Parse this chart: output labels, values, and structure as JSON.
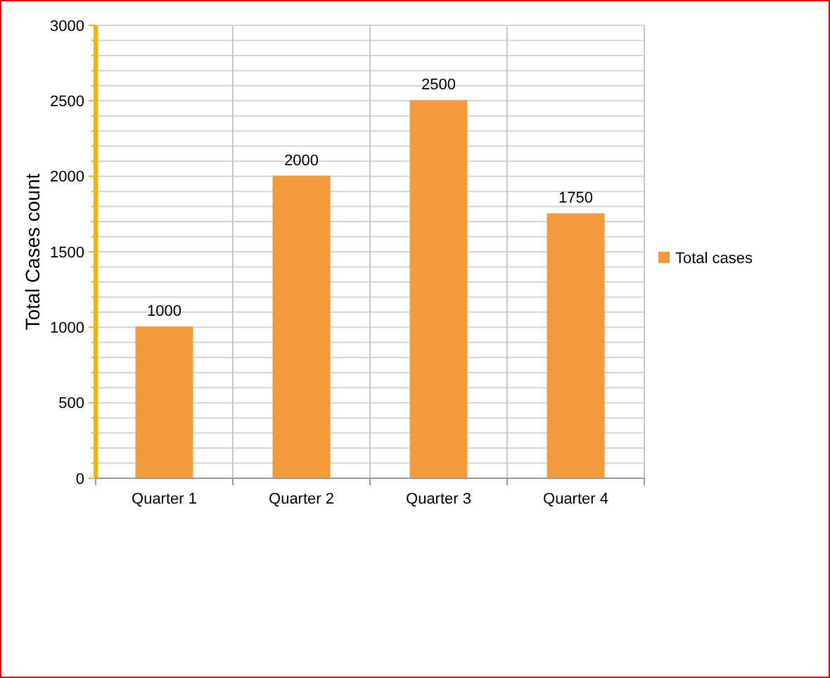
{
  "chart_data": {
    "type": "bar",
    "ylabel": "Total Cases count",
    "categories": [
      "Quarter 1",
      "Quarter 2",
      "Quarter 3",
      "Quarter 4"
    ],
    "series": [
      {
        "name": "Total cases",
        "color": "#f39a3c",
        "values": [
          1000,
          2000,
          2500,
          1750
        ]
      }
    ],
    "ylim": [
      0,
      3000
    ],
    "yticks": [
      0,
      {
        "value": 100,
        "label": null
      },
      {
        "value": 200,
        "label": null
      },
      {
        "value": 300,
        "label": null
      },
      {
        "value": 400,
        "label": null
      },
      500,
      {
        "value": 600,
        "label": null
      },
      {
        "value": 700,
        "label": null
      },
      {
        "value": 800,
        "label": null
      },
      {
        "value": 900,
        "label": null
      },
      1000,
      {
        "value": 1100,
        "label": null
      },
      {
        "value": 1200,
        "label": null
      },
      {
        "value": 1300,
        "label": null
      },
      {
        "value": 1400,
        "label": null
      },
      1500,
      {
        "value": 1600,
        "label": null
      },
      {
        "value": 1700,
        "label": null
      },
      {
        "value": 1800,
        "label": null
      },
      {
        "value": 1900,
        "label": null
      },
      2000,
      {
        "value": 2100,
        "label": null
      },
      {
        "value": 2200,
        "label": null
      },
      {
        "value": 2300,
        "label": null
      },
      {
        "value": 2400,
        "label": null
      },
      2500,
      {
        "value": 2600,
        "label": null
      },
      {
        "value": 2700,
        "label": null
      },
      {
        "value": 2800,
        "label": null
      },
      {
        "value": 2900,
        "label": null
      },
      3000
    ],
    "grid": true,
    "legend": "right",
    "data_labels": true
  }
}
